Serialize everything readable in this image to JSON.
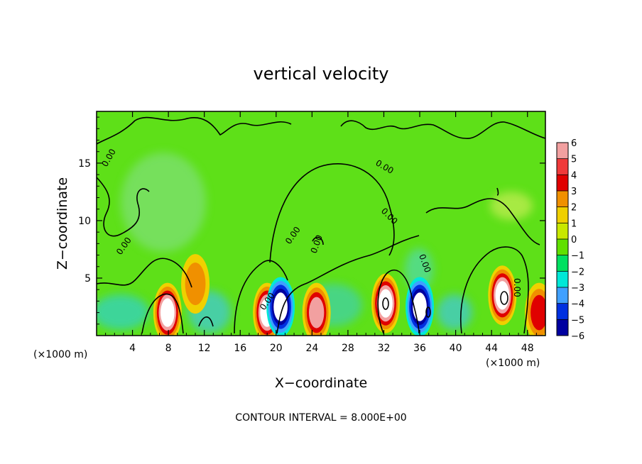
{
  "chart_data": {
    "type": "heatmap",
    "title": "vertical velocity",
    "xlabel": "X−coordinate",
    "ylabel": "Z−coordinate",
    "x_unit": "(×1000 m)",
    "x_unit_right": "(×1000 m)",
    "xlim": [
      0,
      50
    ],
    "ylim": [
      0,
      19.5
    ],
    "x_ticks": [
      "4",
      "8",
      "12",
      "16",
      "20",
      "24",
      "28",
      "32",
      "36",
      "40",
      "44",
      "48"
    ],
    "x_tick_values": [
      4,
      8,
      12,
      16,
      20,
      24,
      28,
      32,
      36,
      40,
      44,
      48
    ],
    "y_ticks": [
      "5",
      "10",
      "15"
    ],
    "y_tick_values": [
      5,
      10,
      15
    ],
    "contour_interval_text": "CONTOUR INTERVAL = 8.000E+00",
    "contour_labels": [
      "0.00",
      "0.00",
      "0.00",
      "0.00",
      "0.00",
      "0.00",
      "0.00",
      "0.00",
      "0.00"
    ],
    "colorbar": {
      "ticks": [
        "6",
        "5",
        "4",
        "3",
        "2",
        "1",
        "0",
        "−1",
        "−2",
        "−3",
        "−4",
        "−5",
        "−6"
      ],
      "levels": [
        6,
        5,
        4,
        3,
        2,
        1,
        0,
        -1,
        -2,
        -3,
        -4,
        -5,
        -6
      ],
      "colors": [
        "#f2a0a0",
        "#f03a3a",
        "#e00000",
        "#f09000",
        "#f0d000",
        "#c8e800",
        "#60e000",
        "#00e060",
        "#00e8d8",
        "#40a0ff",
        "#0030e0",
        "#0000a0",
        "#7000b0"
      ]
    },
    "features": [
      {
        "x": 7.9,
        "z": 2.0,
        "w": 4.5,
        "kind": "updraft"
      },
      {
        "x": 11.0,
        "z": 4.5,
        "w": 2.0,
        "kind": "updraft"
      },
      {
        "x": 19.0,
        "z": 2.0,
        "w": 6.0,
        "kind": "updraft"
      },
      {
        "x": 20.5,
        "z": 2.5,
        "w": -5.0,
        "kind": "downdraft"
      },
      {
        "x": 24.5,
        "z": 2.0,
        "w": 4.0,
        "kind": "updraft"
      },
      {
        "x": 32.2,
        "z": 2.8,
        "w": 6.0,
        "kind": "updraft"
      },
      {
        "x": 36.0,
        "z": 2.5,
        "w": -5.5,
        "kind": "downdraft"
      },
      {
        "x": 45.2,
        "z": 3.5,
        "w": 6.0,
        "kind": "updraft"
      },
      {
        "x": 49.3,
        "z": 2.0,
        "w": 3.0,
        "kind": "updraft"
      }
    ]
  }
}
